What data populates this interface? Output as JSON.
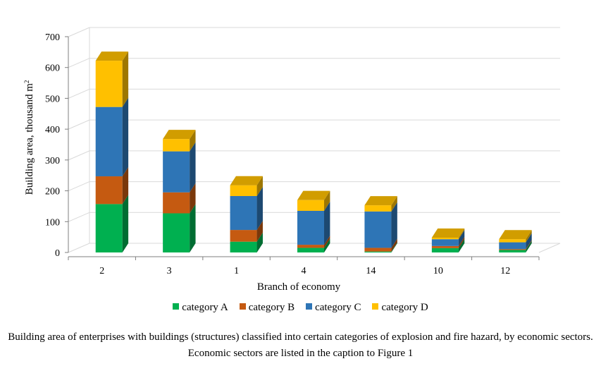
{
  "chart_data": {
    "type": "bar",
    "stacked": true,
    "three_d": true,
    "categories": [
      "2",
      "3",
      "1",
      "4",
      "14",
      "10",
      "12"
    ],
    "series": [
      {
        "name": "category A",
        "color": "#00b050",
        "values": [
          157,
          127,
          35,
          15,
          3,
          14,
          8
        ]
      },
      {
        "name": "category B",
        "color": "#c55a11",
        "values": [
          90,
          68,
          38,
          10,
          12,
          7,
          3
        ]
      },
      {
        "name": "category C",
        "color": "#2e75b6",
        "values": [
          225,
          133,
          110,
          110,
          118,
          22,
          22
        ]
      },
      {
        "name": "category D",
        "color": "#ffc000",
        "values": [
          150,
          40,
          35,
          35,
          20,
          5,
          10
        ]
      }
    ],
    "xlabel": "Branch of economy",
    "ylabel_main": "Building area, thousand m",
    "ylabel_sup": "2",
    "ylim": [
      0,
      700
    ],
    "yticks": [
      "0",
      "100",
      "200",
      "300",
      "400",
      "500",
      "600",
      "700"
    ],
    "grid": true,
    "legend_position": "bottom"
  },
  "caption": "Building area of enterprises with buildings (structures) classified into certain categories of explosion and fire hazard, by economic sectors. Economic sectors are listed in the caption to Figure 1"
}
